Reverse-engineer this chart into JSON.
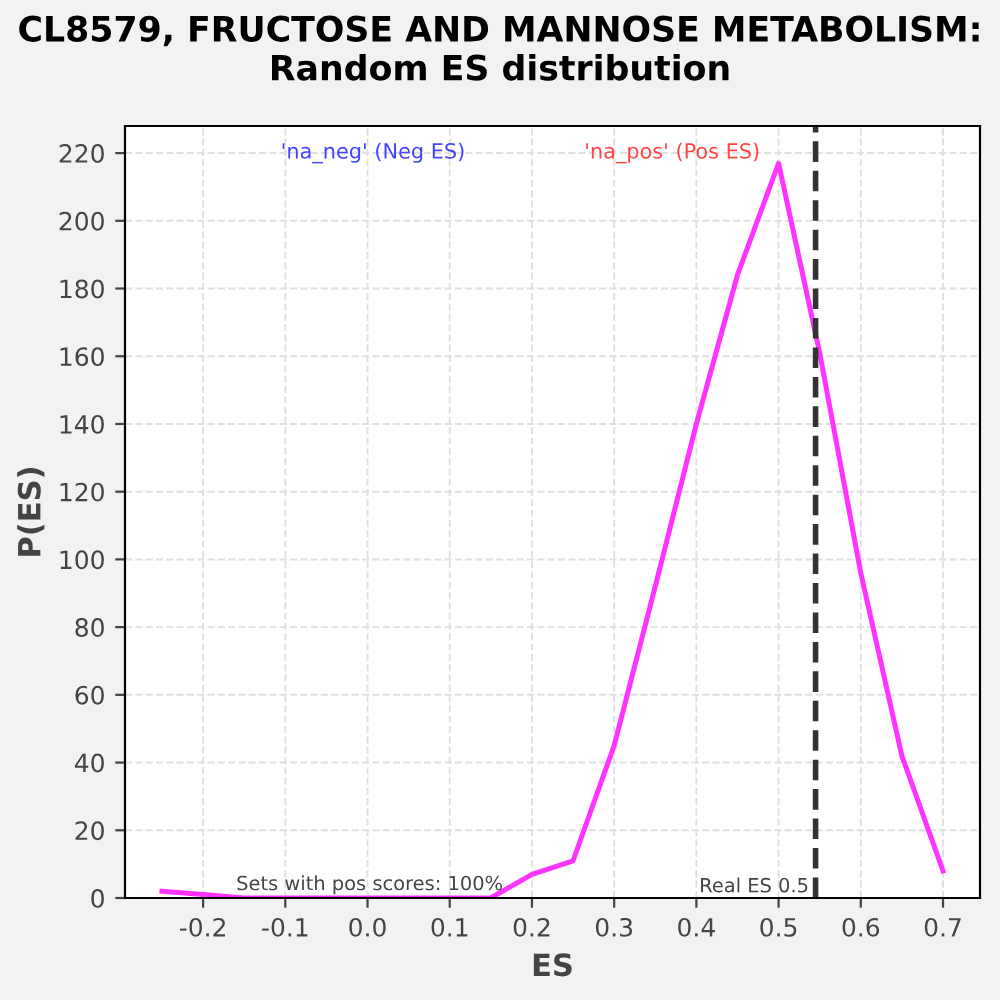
{
  "chart_data": {
    "type": "line",
    "title": "CL8579, FRUCTOSE AND MANNOSE METABOLISM:\nRandom ES distribution",
    "xlabel": "ES",
    "ylabel": "P(ES)",
    "series": [
      {
        "color": "#ff33ff",
        "x": [
          -0.25,
          -0.2,
          -0.15,
          -0.1,
          -0.05,
          0.0,
          0.05,
          0.1,
          0.15,
          0.2,
          0.25,
          0.3,
          0.35,
          0.4,
          0.45,
          0.5,
          0.55,
          0.6,
          0.65,
          0.7
        ],
        "values": [
          2,
          1,
          0,
          0,
          0,
          0,
          0,
          0,
          0,
          7,
          11,
          45,
          92,
          140,
          184,
          217,
          161,
          96,
          42,
          8
        ]
      }
    ],
    "xlim": [
      -0.295,
      0.745
    ],
    "ylim": [
      0,
      228
    ],
    "xticks": [
      -0.2,
      -0.1,
      {
        "value": 0.0,
        "label": "0.0"
      },
      0.1,
      0.2,
      0.3,
      0.4,
      0.5,
      0.6,
      0.7
    ],
    "yticks": [
      0,
      20,
      40,
      60,
      80,
      100,
      120,
      140,
      160,
      180,
      200,
      220
    ],
    "grid": true,
    "marker": "none",
    "line_style": "solid",
    "ref_lines": [
      {
        "axis": "x",
        "value": 0.545,
        "label": "Real ES 0.5",
        "color": "#333333",
        "line_style": "dashed"
      }
    ],
    "annotations": [
      "'na_neg' (Neg ES)",
      "'na_pos' (Pos ES)",
      "Sets with pos scores: 100%"
    ]
  }
}
